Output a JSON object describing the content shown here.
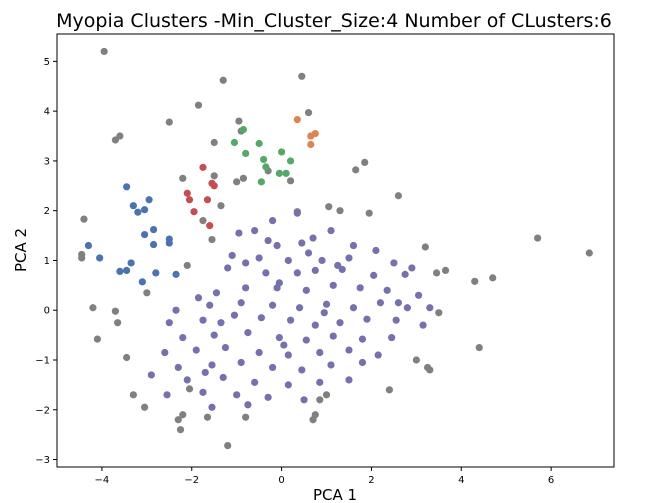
{
  "chart_data": {
    "type": "scatter",
    "title": "Myopia Clusters -Min_Cluster_Size:4 Number of CLusters:6",
    "xlabel": "PCA 1",
    "ylabel": "PCA 2",
    "xlim": [
      -5.0,
      7.4
    ],
    "ylim": [
      -3.15,
      5.55
    ],
    "xticks": [
      "−4",
      "−2",
      "0",
      "2",
      "4",
      "6"
    ],
    "yticks": [
      "−3",
      "−2",
      "−1",
      "0",
      "1",
      "2",
      "3",
      "4",
      "5"
    ],
    "grid": false,
    "legend": "none",
    "series": [
      {
        "color": "#808080",
        "points": [
          [
            -3.95,
            5.2
          ],
          [
            -1.3,
            4.62
          ],
          [
            0.45,
            4.7
          ],
          [
            -1.85,
            4.12
          ],
          [
            0.6,
            3.97
          ],
          [
            -0.95,
            3.8
          ],
          [
            -2.5,
            3.78
          ],
          [
            -0.9,
            3.6
          ],
          [
            -3.6,
            3.5
          ],
          [
            -3.7,
            3.42
          ],
          [
            -1.5,
            3.37
          ],
          [
            1.85,
            2.97
          ],
          [
            1.65,
            2.82
          ],
          [
            -0.3,
            2.8
          ],
          [
            -1.5,
            2.7
          ],
          [
            0.2,
            2.6
          ],
          [
            -2.2,
            2.65
          ],
          [
            -0.85,
            2.65
          ],
          [
            -1.0,
            2.58
          ],
          [
            2.6,
            2.3
          ],
          [
            -1.35,
            2.1
          ],
          [
            1.05,
            2.08
          ],
          [
            1.3,
            2.0
          ],
          [
            1.95,
            1.95
          ],
          [
            0.35,
            1.98
          ],
          [
            -4.4,
            1.83
          ],
          [
            -1.75,
            1.8
          ],
          [
            -1.55,
            1.42
          ],
          [
            3.2,
            1.27
          ],
          [
            -4.45,
            1.12
          ],
          [
            -4.45,
            1.05
          ],
          [
            -2.1,
            0.9
          ],
          [
            3.65,
            0.8
          ],
          [
            3.45,
            0.75
          ],
          [
            5.7,
            1.45
          ],
          [
            6.85,
            1.15
          ],
          [
            4.7,
            0.65
          ],
          [
            4.3,
            0.58
          ],
          [
            -3.7,
            -0.02
          ],
          [
            -3.0,
            0.35
          ],
          [
            -4.2,
            0.05
          ],
          [
            -3.65,
            -0.25
          ],
          [
            3.5,
            -0.05
          ],
          [
            -4.1,
            -0.58
          ],
          [
            -3.45,
            -0.95
          ],
          [
            4.4,
            -0.75
          ],
          [
            3.0,
            -1.0
          ],
          [
            3.25,
            -1.15
          ],
          [
            3.3,
            -1.2
          ],
          [
            -3.3,
            -1.7
          ],
          [
            2.4,
            -1.6
          ],
          [
            -2.05,
            -1.58
          ],
          [
            -3.05,
            -1.95
          ],
          [
            -0.8,
            -2.15
          ],
          [
            -2.2,
            -2.1
          ],
          [
            -2.3,
            -2.2
          ],
          [
            -1.65,
            -2.15
          ],
          [
            -2.25,
            -2.4
          ],
          [
            0.75,
            -2.1
          ],
          [
            0.7,
            -2.2
          ],
          [
            -1.2,
            -2.72
          ],
          [
            0.85,
            -1.8
          ],
          [
            1.0,
            -1.7
          ]
        ]
      },
      {
        "color": "#7471ac",
        "points": [
          [
            -0.2,
            1.8
          ],
          [
            0.35,
            1.95
          ],
          [
            -0.6,
            1.6
          ],
          [
            -0.95,
            1.55
          ],
          [
            -0.3,
            1.4
          ],
          [
            1.1,
            1.6
          ],
          [
            0.7,
            1.45
          ],
          [
            -0.1,
            1.3
          ],
          [
            0.45,
            1.35
          ],
          [
            1.6,
            1.3
          ],
          [
            2.1,
            1.2
          ],
          [
            -1.1,
            1.1
          ],
          [
            -0.5,
            1.05
          ],
          [
            0.15,
            1.0
          ],
          [
            0.9,
            1.0
          ],
          [
            1.5,
            1.05
          ],
          [
            2.5,
            0.95
          ],
          [
            2.9,
            0.85
          ],
          [
            -1.2,
            0.85
          ],
          [
            -0.35,
            0.75
          ],
          [
            0.35,
            0.75
          ],
          [
            0.75,
            0.8
          ],
          [
            1.35,
            0.82
          ],
          [
            2.05,
            0.7
          ],
          [
            2.75,
            0.72
          ],
          [
            -1.85,
            0.25
          ],
          [
            -1.45,
            0.35
          ],
          [
            -0.8,
            0.45
          ],
          [
            -0.05,
            0.55
          ],
          [
            0.55,
            0.4
          ],
          [
            1.15,
            0.5
          ],
          [
            1.75,
            0.45
          ],
          [
            2.35,
            0.4
          ],
          [
            3.05,
            0.3
          ],
          [
            -2.35,
            0.0
          ],
          [
            -1.6,
            0.1
          ],
          [
            -0.9,
            0.15
          ],
          [
            -0.2,
            0.1
          ],
          [
            0.4,
            0.05
          ],
          [
            1.0,
            0.12
          ],
          [
            1.6,
            0.05
          ],
          [
            2.2,
            0.15
          ],
          [
            2.8,
            0.05
          ],
          [
            3.3,
            0.05
          ],
          [
            -2.5,
            -0.25
          ],
          [
            -1.75,
            -0.2
          ],
          [
            -1.05,
            -0.1
          ],
          [
            -0.45,
            -0.15
          ],
          [
            0.2,
            -0.2
          ],
          [
            0.75,
            -0.3
          ],
          [
            1.3,
            -0.25
          ],
          [
            1.9,
            -0.18
          ],
          [
            2.55,
            -0.2
          ],
          [
            3.15,
            -0.3
          ],
          [
            -2.2,
            -0.55
          ],
          [
            -1.5,
            -0.5
          ],
          [
            -0.75,
            -0.45
          ],
          [
            -0.05,
            -0.55
          ],
          [
            0.55,
            -0.6
          ],
          [
            1.15,
            -0.52
          ],
          [
            1.8,
            -0.58
          ],
          [
            2.45,
            -0.55
          ],
          [
            -2.6,
            -0.85
          ],
          [
            -1.9,
            -0.8
          ],
          [
            -1.25,
            -0.75
          ],
          [
            -0.5,
            -0.85
          ],
          [
            0.15,
            -0.9
          ],
          [
            0.85,
            -0.85
          ],
          [
            1.5,
            -0.8
          ],
          [
            2.15,
            -0.9
          ],
          [
            -2.3,
            -1.15
          ],
          [
            -1.55,
            -1.1
          ],
          [
            -0.9,
            -1.05
          ],
          [
            -0.2,
            -1.15
          ],
          [
            0.45,
            -1.2
          ],
          [
            1.1,
            -1.1
          ],
          [
            1.8,
            -1.05
          ],
          [
            -2.9,
            -1.3
          ],
          [
            -2.1,
            -1.4
          ],
          [
            -1.3,
            -1.35
          ],
          [
            -0.6,
            -1.45
          ],
          [
            0.15,
            -1.5
          ],
          [
            0.85,
            -1.45
          ],
          [
            1.5,
            -1.4
          ],
          [
            -2.55,
            -1.7
          ],
          [
            -1.75,
            -1.65
          ],
          [
            -1.0,
            -1.7
          ],
          [
            -0.3,
            -1.75
          ],
          [
            0.5,
            -1.8
          ],
          [
            -1.55,
            -1.95
          ],
          [
            -0.75,
            -1.9
          ],
          [
            -0.1,
            0.45
          ],
          [
            0.95,
            -0.05
          ],
          [
            -1.35,
            -0.25
          ],
          [
            0.05,
            -0.7
          ],
          [
            1.25,
            0.9
          ],
          [
            -0.8,
            0.95
          ],
          [
            2.6,
            0.15
          ],
          [
            -1.7,
            -1.25
          ],
          [
            0.6,
            1.15
          ]
        ]
      },
      {
        "color": "#4c72b0",
        "points": [
          [
            -3.45,
            2.48
          ],
          [
            -3.3,
            2.1
          ],
          [
            -3.2,
            1.97
          ],
          [
            -2.95,
            2.22
          ],
          [
            -3.05,
            2.02
          ],
          [
            -4.3,
            1.3
          ],
          [
            -3.05,
            1.52
          ],
          [
            -2.85,
            1.62
          ],
          [
            -2.85,
            1.32
          ],
          [
            -2.5,
            1.43
          ],
          [
            -2.5,
            1.35
          ],
          [
            -3.45,
            0.8
          ],
          [
            -3.6,
            0.78
          ],
          [
            -3.35,
            0.95
          ],
          [
            -2.8,
            0.75
          ],
          [
            -2.35,
            0.72
          ],
          [
            -3.1,
            0.57
          ],
          [
            -4.05,
            1.05
          ]
        ]
      },
      {
        "color": "#c44e52",
        "points": [
          [
            -1.75,
            2.87
          ],
          [
            -1.55,
            2.55
          ],
          [
            -1.5,
            2.5
          ],
          [
            -2.1,
            2.35
          ],
          [
            -2.05,
            2.22
          ],
          [
            -1.65,
            2.22
          ],
          [
            -1.95,
            1.98
          ],
          [
            -1.6,
            1.7
          ]
        ]
      },
      {
        "color": "#55a868",
        "points": [
          [
            -0.85,
            3.63
          ],
          [
            -0.5,
            3.35
          ],
          [
            -1.05,
            3.37
          ],
          [
            0.0,
            3.18
          ],
          [
            -0.8,
            3.15
          ],
          [
            -0.4,
            3.03
          ],
          [
            0.2,
            3.0
          ],
          [
            -0.35,
            2.88
          ],
          [
            -0.05,
            2.75
          ],
          [
            0.1,
            2.75
          ],
          [
            -0.45,
            2.58
          ]
        ]
      },
      {
        "color": "#dd8452",
        "points": [
          [
            0.35,
            3.83
          ],
          [
            0.75,
            3.55
          ],
          [
            0.65,
            3.5
          ],
          [
            0.65,
            3.33
          ]
        ]
      }
    ]
  }
}
